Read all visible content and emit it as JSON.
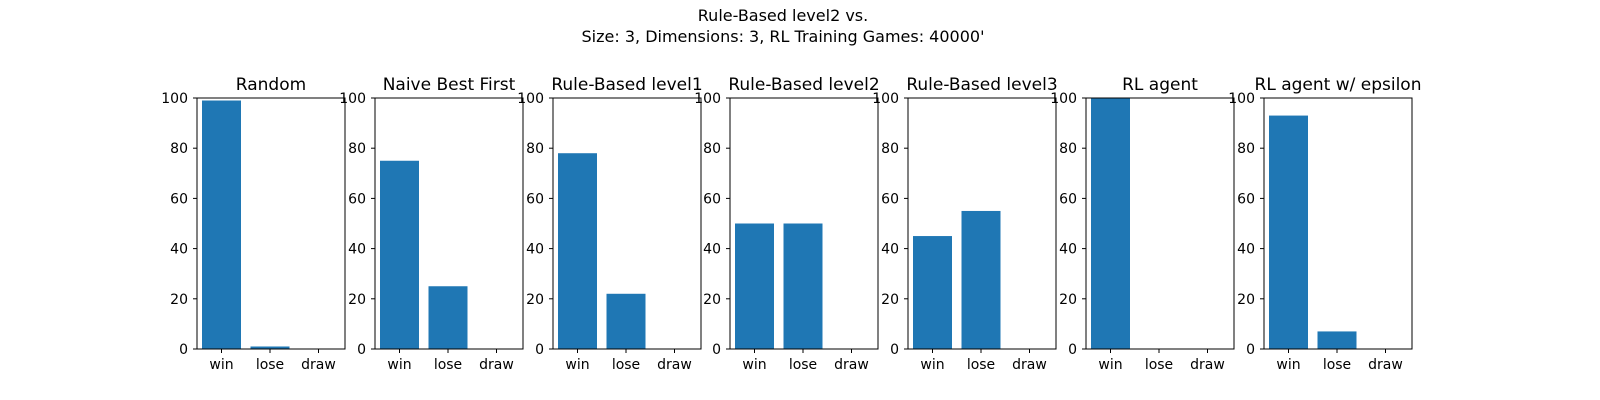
{
  "figure": {
    "title_line1": "Rule-Based level2 vs.",
    "title_line2": "Size: 3, Dimensions: 3, RL Training Games: 40000'"
  },
  "bar_color": "#1f77b4",
  "chart_data": [
    {
      "type": "bar",
      "title": "Random",
      "categories": [
        "win",
        "lose",
        "draw"
      ],
      "values": [
        99,
        1,
        0
      ],
      "ylim": [
        0,
        100
      ],
      "yticks": [
        0,
        20,
        40,
        60,
        80,
        100
      ],
      "xlabel": "",
      "ylabel": ""
    },
    {
      "type": "bar",
      "title": "Naive Best First",
      "categories": [
        "win",
        "lose",
        "draw"
      ],
      "values": [
        75,
        25,
        0
      ],
      "ylim": [
        0,
        100
      ],
      "yticks": [
        0,
        20,
        40,
        60,
        80,
        100
      ],
      "xlabel": "",
      "ylabel": ""
    },
    {
      "type": "bar",
      "title": "Rule-Based level1",
      "categories": [
        "win",
        "lose",
        "draw"
      ],
      "values": [
        78,
        22,
        0
      ],
      "ylim": [
        0,
        100
      ],
      "yticks": [
        0,
        20,
        40,
        60,
        80,
        100
      ],
      "xlabel": "",
      "ylabel": ""
    },
    {
      "type": "bar",
      "title": "Rule-Based level2",
      "categories": [
        "win",
        "lose",
        "draw"
      ],
      "values": [
        50,
        50,
        0
      ],
      "ylim": [
        0,
        100
      ],
      "yticks": [
        0,
        20,
        40,
        60,
        80,
        100
      ],
      "xlabel": "",
      "ylabel": ""
    },
    {
      "type": "bar",
      "title": "Rule-Based level3",
      "categories": [
        "win",
        "lose",
        "draw"
      ],
      "values": [
        45,
        55,
        0
      ],
      "ylim": [
        0,
        100
      ],
      "yticks": [
        0,
        20,
        40,
        60,
        80,
        100
      ],
      "xlabel": "",
      "ylabel": ""
    },
    {
      "type": "bar",
      "title": "RL agent",
      "categories": [
        "win",
        "lose",
        "draw"
      ],
      "values": [
        100,
        0,
        0
      ],
      "ylim": [
        0,
        100
      ],
      "yticks": [
        0,
        20,
        40,
        60,
        80,
        100
      ],
      "xlabel": "",
      "ylabel": ""
    },
    {
      "type": "bar",
      "title": "RL agent w/ epsilon",
      "categories": [
        "win",
        "lose",
        "draw"
      ],
      "values": [
        93,
        7,
        0
      ],
      "ylim": [
        0,
        100
      ],
      "yticks": [
        0,
        20,
        40,
        60,
        80,
        100
      ],
      "xlabel": "",
      "ylabel": ""
    }
  ]
}
